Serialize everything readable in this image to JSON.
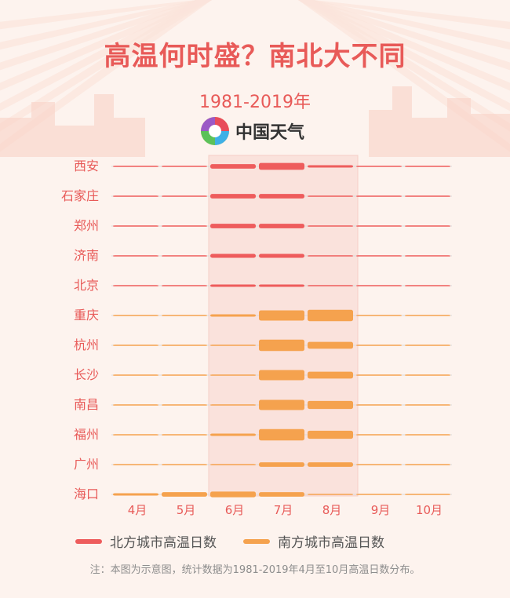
{
  "header": {
    "title_part1": "高温何时盛？",
    "title_part2": "南北大不同",
    "subtitle": "1981-2019年",
    "brand": "中国天气"
  },
  "legend": {
    "north_label": "北方城市高温日数",
    "south_label": "南方城市高温日数"
  },
  "note": "注：本图为示意图，统计数据为1981-2019年4月至10月高温日数分布。",
  "colors": {
    "north": "#ee5c5c",
    "south": "#f5a24e",
    "title": "#e85a58",
    "highlight": "#f9ddd7"
  },
  "chart_data": {
    "type": "bar",
    "categories": [
      "4月",
      "5月",
      "6月",
      "7月",
      "8月",
      "9月",
      "10月"
    ],
    "highlight_months": [
      "6月",
      "7月",
      "8月"
    ],
    "series": [
      {
        "name": "西安",
        "region": "north",
        "values": [
          0,
          0.5,
          4,
          6,
          2,
          0,
          0
        ]
      },
      {
        "name": "石家庄",
        "region": "north",
        "values": [
          0,
          0.3,
          4,
          4,
          1,
          0,
          0
        ]
      },
      {
        "name": "郑州",
        "region": "north",
        "values": [
          0,
          0.3,
          4,
          4,
          1,
          0,
          0
        ]
      },
      {
        "name": "济南",
        "region": "north",
        "values": [
          0,
          0.3,
          3.5,
          3.5,
          1,
          0,
          0
        ]
      },
      {
        "name": "北京",
        "region": "north",
        "values": [
          0,
          0.2,
          2,
          2,
          0.5,
          0,
          0
        ]
      },
      {
        "name": "重庆",
        "region": "south",
        "values": [
          0,
          0.3,
          2,
          9,
          10,
          1,
          0
        ]
      },
      {
        "name": "杭州",
        "region": "south",
        "values": [
          0,
          0.2,
          1,
          10,
          6,
          0.5,
          0
        ]
      },
      {
        "name": "长沙",
        "region": "south",
        "values": [
          0,
          0.2,
          1,
          9,
          6,
          0.5,
          0
        ]
      },
      {
        "name": "南昌",
        "region": "south",
        "values": [
          0,
          0.2,
          1,
          9,
          7,
          0.5,
          0
        ]
      },
      {
        "name": "福州",
        "region": "south",
        "values": [
          0,
          0.3,
          2,
          10,
          7,
          1,
          0
        ]
      },
      {
        "name": "广州",
        "region": "south",
        "values": [
          0,
          0.2,
          1,
          4,
          4,
          1,
          0
        ]
      },
      {
        "name": "海口",
        "region": "south",
        "values": [
          2,
          4,
          5,
          4,
          1,
          0,
          0
        ]
      }
    ]
  }
}
